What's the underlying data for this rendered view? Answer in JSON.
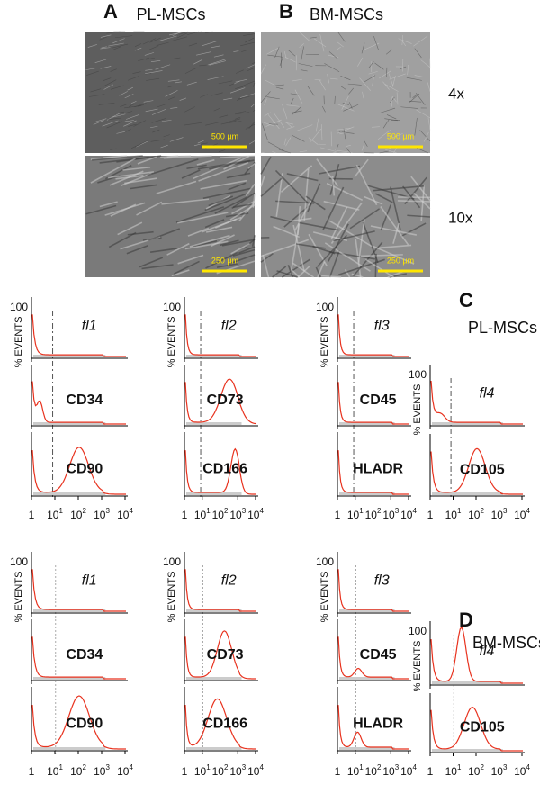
{
  "micrographs": {
    "columns": [
      {
        "letter": "A",
        "title": "PL-MSCs"
      },
      {
        "letter": "B",
        "title": "BM-MSCs"
      }
    ],
    "rows": [
      {
        "label": "4x",
        "scale_bar": "500 µm"
      },
      {
        "label": "10x",
        "scale_bar": "250 µm"
      }
    ]
  },
  "axis": {
    "y_max": "100",
    "y_label": "% EVENTS",
    "x_ticks": [
      {
        "base": "1"
      },
      {
        "base": "10",
        "exp": "1"
      },
      {
        "base": "10",
        "exp": "2"
      },
      {
        "base": "10",
        "exp": "3"
      },
      {
        "base": "10",
        "exp": "4"
      }
    ]
  },
  "panels": [
    {
      "letter": "C",
      "title": "PL-MSCs",
      "columns": [
        {
          "plots": [
            "fl1",
            "CD34",
            "CD90"
          ]
        },
        {
          "plots": [
            "fl2",
            "CD73",
            "CD166"
          ]
        },
        {
          "plots": [
            "fl3",
            "CD45",
            "HLADR"
          ]
        },
        {
          "plots": [
            "fl4",
            "CD105"
          ]
        }
      ]
    },
    {
      "letter": "D",
      "title": "BM-MSCs",
      "columns": [
        {
          "plots": [
            "fl1",
            "CD34",
            "CD90"
          ]
        },
        {
          "plots": [
            "fl2",
            "CD73",
            "CD166"
          ]
        },
        {
          "plots": [
            "fl3",
            "CD45",
            "HLADR"
          ]
        },
        {
          "plots": [
            "fl4",
            "CD105"
          ]
        }
      ]
    }
  ]
}
